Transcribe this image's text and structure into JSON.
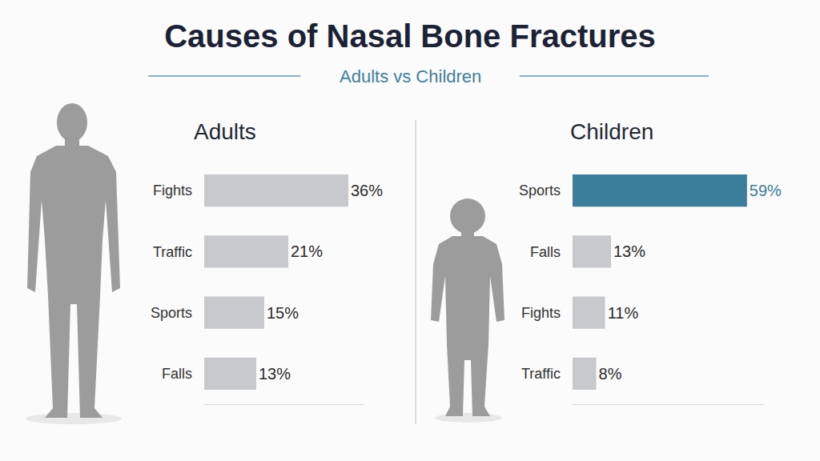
{
  "title": "Causes of Nasal Bone Fractures",
  "subtitle": "Adults vs Children",
  "chart_data": [
    {
      "type": "bar",
      "title": "Adults",
      "orientation": "horizontal",
      "categories": [
        "Fights",
        "Traffic",
        "Sports",
        "Falls"
      ],
      "values": [
        36,
        21,
        15,
        13
      ],
      "value_labels": [
        "36%",
        "21%",
        "15%",
        "13%"
      ],
      "colors": [
        "#c8c9cd",
        "#c8c9cd",
        "#c8c9cd",
        "#c8c9cd"
      ],
      "xlim": [
        0,
        40
      ],
      "data_labels": true,
      "tick_labels": "y",
      "grid": false
    },
    {
      "type": "bar",
      "title": "Children",
      "orientation": "horizontal",
      "categories": [
        "Sports",
        "Falls",
        "Fights",
        "Traffic"
      ],
      "values": [
        59,
        13,
        11,
        8
      ],
      "value_labels": [
        "59%",
        "13%",
        "11%",
        "8%"
      ],
      "colors": [
        "#3b7e9b",
        "#c8c9cd",
        "#c8c9cd",
        "#c8c9cd"
      ],
      "xlim": [
        0,
        65
      ],
      "data_labels": true,
      "tick_labels": "y",
      "grid": false
    }
  ]
}
